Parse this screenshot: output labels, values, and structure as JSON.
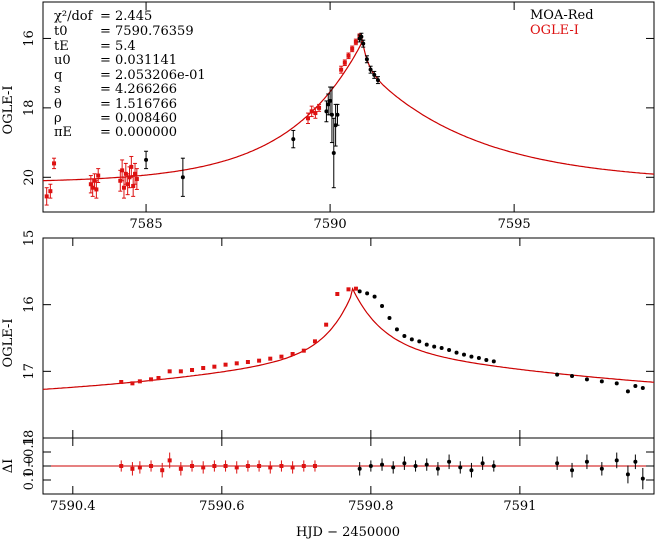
{
  "colors": {
    "red": "#dd1111",
    "black": "#000000",
    "model": "#cc0000"
  },
  "legend": [
    {
      "label": "MOA-Red",
      "color": "#000000"
    },
    {
      "label": "OGLE-I",
      "color": "#dd1111"
    }
  ],
  "params": [
    {
      "name": "χ²/dof",
      "value": "= 2.445"
    },
    {
      "name": "t0",
      "value": "= 7590.76359"
    },
    {
      "name": "tE",
      "value": "= 5.4"
    },
    {
      "name": "u0",
      "value": "= 0.031141"
    },
    {
      "name": "q",
      "value": "= 2.053206e-01"
    },
    {
      "name": "s",
      "value": "= 4.266266"
    },
    {
      "name": "θ",
      "value": "= 1.516766"
    },
    {
      "name": "ρ",
      "value": "= 0.008460"
    },
    {
      "name": "πE",
      "value": "= 0.000000"
    }
  ],
  "xlabel": "HJD − 2450000",
  "chart_data": [
    {
      "type": "scatter",
      "panel": "top",
      "ylabel": "OGLE-I",
      "xlim": [
        7582.2,
        7598.8
      ],
      "ylim": [
        21.0,
        14.95
      ],
      "xticks": [
        7585,
        7590,
        7595
      ],
      "xticklabels": [
        "7585",
        "7590",
        "7595"
      ],
      "yticks": [
        16,
        18,
        20
      ],
      "yticklabels": [
        "16",
        "18",
        "20"
      ],
      "model": {
        "t0": 7590.85,
        "peak": 15.9,
        "base": 20.15,
        "amp_left": 4.0,
        "tau_left": 2.0,
        "amp_right": 3.4,
        "tau_right": 3.0
      },
      "series": [
        {
          "name": "OGLE-I",
          "color": "#dd1111",
          "points": [
            [
              7582.3,
              20.55,
              0.25
            ],
            [
              7582.4,
              20.4,
              0.2
            ],
            [
              7582.5,
              19.6,
              0.15
            ],
            [
              7583.5,
              20.2,
              0.25
            ],
            [
              7583.55,
              20.3,
              0.25
            ],
            [
              7583.6,
              20.1,
              0.2
            ],
            [
              7583.65,
              20.35,
              0.25
            ],
            [
              7583.7,
              19.95,
              0.2
            ],
            [
              7584.3,
              20.1,
              0.3
            ],
            [
              7584.35,
              19.8,
              0.3
            ],
            [
              7584.4,
              20.3,
              0.3
            ],
            [
              7584.45,
              19.9,
              0.3
            ],
            [
              7584.5,
              20.2,
              0.3
            ],
            [
              7584.55,
              20.0,
              0.3
            ],
            [
              7584.6,
              19.7,
              0.3
            ],
            [
              7584.65,
              20.25,
              0.3
            ],
            [
              7584.7,
              19.9,
              0.3
            ],
            [
              7584.75,
              20.05,
              0.3
            ],
            [
              7589.4,
              18.3,
              0.15
            ],
            [
              7589.5,
              18.1,
              0.15
            ],
            [
              7589.6,
              18.15,
              0.15
            ],
            [
              7589.7,
              18.0,
              0.1
            ],
            [
              7590.3,
              16.9,
              0.1
            ],
            [
              7590.4,
              16.7,
              0.08
            ],
            [
              7590.5,
              16.5,
              0.08
            ],
            [
              7590.6,
              16.3,
              0.08
            ],
            [
              7590.7,
              16.1,
              0.08
            ],
            [
              7590.8,
              15.95,
              0.08
            ]
          ]
        },
        {
          "name": "MOA-Red",
          "color": "#000000",
          "points": [
            [
              7585.0,
              19.5,
              0.25
            ],
            [
              7586.0,
              20.0,
              0.55
            ],
            [
              7589.0,
              18.9,
              0.25
            ],
            [
              7589.9,
              18.1,
              0.3
            ],
            [
              7589.95,
              17.9,
              0.3
            ],
            [
              7590.0,
              17.8,
              0.4
            ],
            [
              7590.05,
              18.2,
              0.8
            ],
            [
              7590.1,
              19.3,
              1.0
            ],
            [
              7590.15,
              18.5,
              0.6
            ],
            [
              7590.2,
              18.2,
              0.3
            ],
            [
              7590.8,
              16.0,
              0.1
            ],
            [
              7590.85,
              15.95,
              0.1
            ],
            [
              7590.9,
              16.15,
              0.1
            ],
            [
              7591.0,
              16.6,
              0.1
            ],
            [
              7591.1,
              16.9,
              0.1
            ],
            [
              7591.2,
              17.05,
              0.1
            ],
            [
              7591.3,
              17.2,
              0.1
            ]
          ]
        }
      ]
    },
    {
      "type": "scatter",
      "panel": "middle",
      "ylabel": "OGLE-I",
      "xlim": [
        7590.36,
        7591.18
      ],
      "ylim": [
        18.0,
        15.0
      ],
      "xticks": [
        7590.4,
        7590.6,
        7590.8,
        7591.0
      ],
      "yticks": [
        15,
        16,
        17,
        18
      ],
      "yticklabels": [
        "15",
        "16",
        "17",
        "18"
      ],
      "series": [
        {
          "name": "OGLE-I",
          "color": "#dd1111",
          "points": [
            [
              7590.465,
              17.16
            ],
            [
              7590.48,
              17.18
            ],
            [
              7590.49,
              17.15
            ],
            [
              7590.505,
              17.12
            ],
            [
              7590.515,
              17.1
            ],
            [
              7590.53,
              17.0
            ],
            [
              7590.545,
              17.0
            ],
            [
              7590.56,
              16.98
            ],
            [
              7590.575,
              16.95
            ],
            [
              7590.59,
              16.93
            ],
            [
              7590.605,
              16.9
            ],
            [
              7590.62,
              16.88
            ],
            [
              7590.635,
              16.86
            ],
            [
              7590.65,
              16.84
            ],
            [
              7590.665,
              16.81
            ],
            [
              7590.68,
              16.78
            ],
            [
              7590.695,
              16.74
            ],
            [
              7590.71,
              16.69
            ],
            [
              7590.725,
              16.55
            ],
            [
              7590.74,
              16.3
            ],
            [
              7590.755,
              15.84
            ],
            [
              7590.77,
              15.77
            ],
            [
              7590.78,
              15.76
            ]
          ]
        },
        {
          "name": "MOA-Red",
          "color": "#000000",
          "points": [
            [
              7590.785,
              15.8
            ],
            [
              7590.795,
              15.83
            ],
            [
              7590.805,
              15.88
            ],
            [
              7590.815,
              16.02
            ],
            [
              7590.825,
              16.2
            ],
            [
              7590.835,
              16.37
            ],
            [
              7590.845,
              16.47
            ],
            [
              7590.855,
              16.52
            ],
            [
              7590.865,
              16.55
            ],
            [
              7590.875,
              16.6
            ],
            [
              7590.885,
              16.63
            ],
            [
              7590.895,
              16.65
            ],
            [
              7590.905,
              16.68
            ],
            [
              7590.915,
              16.72
            ],
            [
              7590.925,
              16.75
            ],
            [
              7590.935,
              16.78
            ],
            [
              7590.945,
              16.8
            ],
            [
              7590.955,
              16.83
            ],
            [
              7590.965,
              16.85
            ],
            [
              7591.05,
              17.05
            ],
            [
              7591.07,
              17.07
            ],
            [
              7591.09,
              17.12
            ],
            [
              7591.11,
              17.15
            ],
            [
              7591.13,
              17.18
            ],
            [
              7591.145,
              17.3
            ],
            [
              7591.155,
              17.22
            ],
            [
              7591.165,
              17.25
            ]
          ]
        }
      ]
    },
    {
      "type": "scatter",
      "panel": "residual",
      "ylabel": "ΔI",
      "xlim": [
        7590.36,
        7591.18
      ],
      "ylim": [
        0.2,
        -0.2
      ],
      "xticks": [
        7590.4,
        7590.6,
        7590.8,
        7591.0
      ],
      "xticklabels": [
        "7590.4",
        "7590.6",
        "7590.8",
        "7591"
      ],
      "yticks": [
        0.1,
        0.0,
        -0.1
      ],
      "yticklabels": [
        "0.1",
        "0.0",
        "−0.1"
      ],
      "series": [
        {
          "name": "OGLE-I",
          "color": "#dd1111",
          "points": [
            [
              7590.465,
              0.0
            ],
            [
              7590.48,
              0.02
            ],
            [
              7590.49,
              0.01
            ],
            [
              7590.505,
              0.0
            ],
            [
              7590.52,
              0.03
            ],
            [
              7590.53,
              -0.04
            ],
            [
              7590.545,
              0.02
            ],
            [
              7590.56,
              0.0
            ],
            [
              7590.575,
              0.01
            ],
            [
              7590.59,
              0.0
            ],
            [
              7590.605,
              0.0
            ],
            [
              7590.62,
              0.01
            ],
            [
              7590.635,
              0.0
            ],
            [
              7590.65,
              0.0
            ],
            [
              7590.665,
              0.01
            ],
            [
              7590.68,
              0.0
            ],
            [
              7590.695,
              0.01
            ],
            [
              7590.71,
              0.0
            ],
            [
              7590.725,
              0.0
            ]
          ]
        },
        {
          "name": "MOA-Red",
          "color": "#000000",
          "points": [
            [
              7590.785,
              0.02
            ],
            [
              7590.8,
              0.0
            ],
            [
              7590.815,
              -0.01
            ],
            [
              7590.83,
              0.01
            ],
            [
              7590.845,
              -0.02
            ],
            [
              7590.86,
              0.0
            ],
            [
              7590.875,
              -0.01
            ],
            [
              7590.89,
              0.02
            ],
            [
              7590.905,
              -0.03
            ],
            [
              7590.92,
              0.01
            ],
            [
              7590.935,
              0.03
            ],
            [
              7590.95,
              -0.02
            ],
            [
              7590.965,
              0.0
            ],
            [
              7591.05,
              -0.02
            ],
            [
              7591.07,
              0.03
            ],
            [
              7591.09,
              -0.03
            ],
            [
              7591.11,
              0.02
            ],
            [
              7591.13,
              -0.04
            ],
            [
              7591.145,
              0.06
            ],
            [
              7591.155,
              -0.03
            ],
            [
              7591.165,
              0.09
            ]
          ]
        }
      ]
    }
  ]
}
